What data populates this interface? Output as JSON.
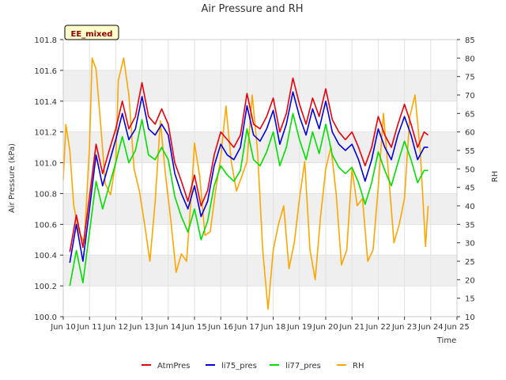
{
  "chart_data": {
    "type": "line",
    "title": "Air Pressure and RH",
    "xlabel": "Time",
    "ylabel": "Air Pressure (kPa)",
    "y2label": "RH",
    "badge": "EE_mixed",
    "xlim": [
      10,
      25
    ],
    "xticks": [
      {
        "v": 10,
        "label": "Jun 10"
      },
      {
        "v": 11,
        "label": "Jun 11"
      },
      {
        "v": 12,
        "label": "Jun 12"
      },
      {
        "v": 13,
        "label": "Jun 13"
      },
      {
        "v": 14,
        "label": "Jun 14"
      },
      {
        "v": 15,
        "label": "Jun 15"
      },
      {
        "v": 16,
        "label": "Jun 16"
      },
      {
        "v": 17,
        "label": "Jun 17"
      },
      {
        "v": 18,
        "label": "Jun 18"
      },
      {
        "v": 19,
        "label": "Jun 19"
      },
      {
        "v": 20,
        "label": "Jun 20"
      },
      {
        "v": 21,
        "label": "Jun 21"
      },
      {
        "v": 22,
        "label": "Jun 22"
      },
      {
        "v": 23,
        "label": "Jun 23"
      },
      {
        "v": 24,
        "label": "Jun 24"
      },
      {
        "v": 25,
        "label": "Jun 25"
      }
    ],
    "ylim": [
      100.0,
      101.8
    ],
    "yticks": [
      "100.0",
      "100.2",
      "100.4",
      "100.6",
      "100.8",
      "101.0",
      "101.2",
      "101.4",
      "101.6",
      "101.8"
    ],
    "y2lim": [
      10,
      85
    ],
    "y2ticks": [
      "10",
      "15",
      "20",
      "25",
      "30",
      "35",
      "40",
      "45",
      "50",
      "55",
      "60",
      "65",
      "70",
      "75",
      "80",
      "85"
    ],
    "grid": true,
    "legend": "bottom",
    "series": [
      {
        "name": "AtmPres",
        "color": "#e8000b",
        "axis": "left",
        "x": [
          10.25,
          10.5,
          10.75,
          11.0,
          11.25,
          11.5,
          11.75,
          12.0,
          12.25,
          12.5,
          12.75,
          13.0,
          13.25,
          13.5,
          13.75,
          14.0,
          14.25,
          14.5,
          14.75,
          15.0,
          15.25,
          15.5,
          15.75,
          16.0,
          16.25,
          16.5,
          16.75,
          17.0,
          17.25,
          17.5,
          17.75,
          18.0,
          18.25,
          18.5,
          18.75,
          19.0,
          19.25,
          19.5,
          19.75,
          20.0,
          20.25,
          20.5,
          20.75,
          21.0,
          21.25,
          21.5,
          21.75,
          22.0,
          22.25,
          22.5,
          22.75,
          23.0,
          23.25,
          23.5,
          23.75,
          23.9
        ],
        "y": [
          100.42,
          100.66,
          100.45,
          100.78,
          101.12,
          100.93,
          101.08,
          101.22,
          101.4,
          101.22,
          101.3,
          101.52,
          101.3,
          101.25,
          101.35,
          101.25,
          101.0,
          100.88,
          100.75,
          100.92,
          100.72,
          100.82,
          101.05,
          101.2,
          101.15,
          101.1,
          101.18,
          101.45,
          101.25,
          101.22,
          101.3,
          101.42,
          101.2,
          101.32,
          101.55,
          101.38,
          101.25,
          101.42,
          101.3,
          101.48,
          101.28,
          101.2,
          101.15,
          101.2,
          101.1,
          100.98,
          101.1,
          101.3,
          101.18,
          101.1,
          101.25,
          101.38,
          101.25,
          101.1,
          101.2,
          101.18
        ]
      },
      {
        "name": "li75_pres",
        "color": "#0000e0",
        "axis": "left",
        "x": [
          10.25,
          10.5,
          10.75,
          11.0,
          11.25,
          11.5,
          11.75,
          12.0,
          12.25,
          12.5,
          12.75,
          13.0,
          13.25,
          13.5,
          13.75,
          14.0,
          14.25,
          14.5,
          14.75,
          15.0,
          15.25,
          15.5,
          15.75,
          16.0,
          16.25,
          16.5,
          16.75,
          17.0,
          17.25,
          17.5,
          17.75,
          18.0,
          18.25,
          18.5,
          18.75,
          19.0,
          19.25,
          19.5,
          19.75,
          20.0,
          20.25,
          20.5,
          20.75,
          21.0,
          21.25,
          21.5,
          21.75,
          22.0,
          22.25,
          22.5,
          22.75,
          23.0,
          23.25,
          23.5,
          23.75,
          23.9
        ],
        "y": [
          100.35,
          100.6,
          100.36,
          100.7,
          101.05,
          100.85,
          101.0,
          101.15,
          101.32,
          101.15,
          101.22,
          101.43,
          101.22,
          101.18,
          101.25,
          101.18,
          100.93,
          100.8,
          100.7,
          100.85,
          100.65,
          100.75,
          100.98,
          101.12,
          101.05,
          101.02,
          101.1,
          101.37,
          101.18,
          101.14,
          101.22,
          101.34,
          101.12,
          101.25,
          101.46,
          101.3,
          101.18,
          101.35,
          101.22,
          101.4,
          101.2,
          101.12,
          101.08,
          101.12,
          101.02,
          100.88,
          101.02,
          101.22,
          101.1,
          101.02,
          101.18,
          101.3,
          101.18,
          101.02,
          101.1,
          101.1
        ]
      },
      {
        "name": "li77_pres",
        "color": "#00e000",
        "axis": "left",
        "x": [
          10.25,
          10.5,
          10.75,
          11.0,
          11.25,
          11.5,
          11.75,
          12.0,
          12.25,
          12.5,
          12.75,
          13.0,
          13.25,
          13.5,
          13.75,
          14.0,
          14.25,
          14.5,
          14.75,
          15.0,
          15.25,
          15.5,
          15.75,
          16.0,
          16.25,
          16.5,
          16.75,
          17.0,
          17.25,
          17.5,
          17.75,
          18.0,
          18.25,
          18.5,
          18.75,
          19.0,
          19.25,
          19.5,
          19.75,
          20.0,
          20.25,
          20.5,
          20.75,
          21.0,
          21.25,
          21.5,
          21.75,
          22.0,
          22.25,
          22.5,
          22.75,
          23.0,
          23.25,
          23.5,
          23.75,
          23.9
        ],
        "y": [
          100.2,
          100.43,
          100.22,
          100.55,
          100.88,
          100.7,
          100.85,
          101.0,
          101.17,
          101.0,
          101.08,
          101.28,
          101.05,
          101.02,
          101.1,
          101.02,
          100.78,
          100.65,
          100.55,
          100.7,
          100.5,
          100.62,
          100.85,
          100.98,
          100.92,
          100.88,
          100.95,
          101.22,
          101.02,
          100.98,
          101.07,
          101.2,
          100.98,
          101.1,
          101.32,
          101.15,
          101.02,
          101.2,
          101.06,
          101.25,
          101.05,
          100.97,
          100.93,
          100.97,
          100.87,
          100.73,
          100.87,
          101.07,
          100.95,
          100.85,
          101.0,
          101.14,
          101.02,
          100.87,
          100.95,
          100.95
        ]
      },
      {
        "name": "RH",
        "color": "#ffa500",
        "axis": "right",
        "x": [
          10.0,
          10.1,
          10.25,
          10.4,
          10.6,
          10.8,
          11.0,
          11.1,
          11.25,
          11.45,
          11.6,
          11.8,
          12.0,
          12.1,
          12.3,
          12.5,
          12.7,
          12.9,
          13.1,
          13.3,
          13.5,
          13.7,
          13.9,
          14.1,
          14.3,
          14.5,
          14.7,
          14.9,
          15.0,
          15.2,
          15.4,
          15.6,
          15.8,
          16.0,
          16.2,
          16.4,
          16.6,
          16.8,
          17.0,
          17.2,
          17.4,
          17.6,
          17.8,
          18.0,
          18.2,
          18.4,
          18.6,
          18.8,
          19.0,
          19.2,
          19.4,
          19.6,
          19.8,
          20.0,
          20.2,
          20.4,
          20.6,
          20.8,
          21.0,
          21.2,
          21.4,
          21.6,
          21.8,
          22.0,
          22.2,
          22.4,
          22.6,
          22.8,
          23.0,
          23.2,
          23.4,
          23.6,
          23.8,
          23.9
        ],
        "y": [
          47,
          62,
          55,
          40,
          33,
          30,
          56,
          80,
          77,
          60,
          46,
          43,
          52,
          74,
          80,
          70,
          50,
          44,
          35,
          25,
          41,
          63,
          48,
          36,
          22,
          27,
          25,
          45,
          57,
          48,
          32,
          33,
          44,
          53,
          67,
          52,
          44,
          48,
          52,
          70,
          55,
          28,
          12,
          28,
          35,
          40,
          23,
          30,
          42,
          52,
          28,
          20,
          37,
          50,
          56,
          43,
          24,
          28,
          50,
          40,
          42,
          25,
          28,
          45,
          65,
          48,
          30,
          35,
          42,
          64,
          70,
          55,
          29,
          40
        ]
      }
    ]
  }
}
